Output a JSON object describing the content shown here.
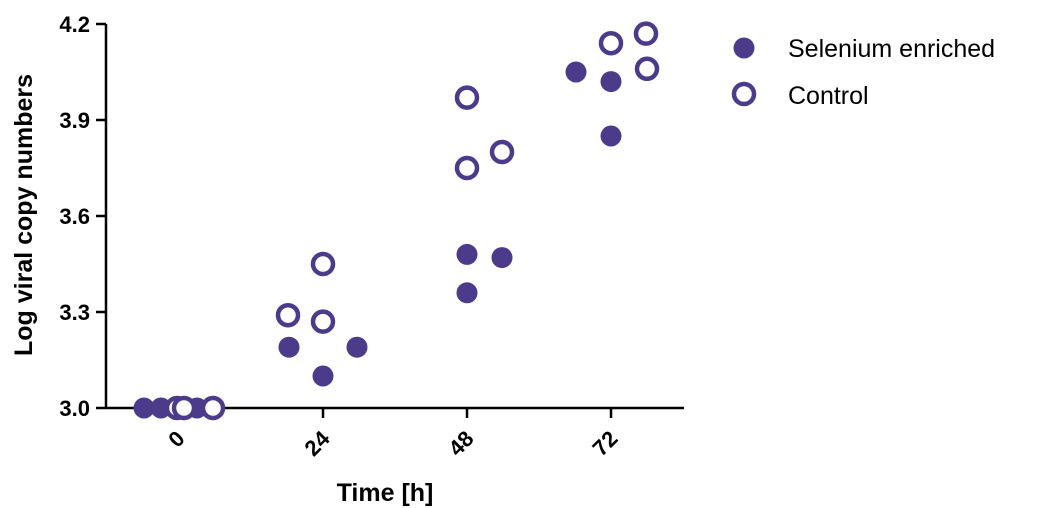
{
  "chart_data": {
    "type": "scatter",
    "xlabel": "Time [h]",
    "ylabel": "Log viral copy numbers",
    "categories": [
      "0",
      "24",
      "48",
      "72"
    ],
    "ylim": [
      3.0,
      4.2
    ],
    "yticks": [
      "3.0",
      "3.3",
      "3.6",
      "3.9",
      "4.2"
    ],
    "grid": false,
    "legend_position": "top-right",
    "series": [
      {
        "name": "Selenium enriched",
        "marker": "filled-circle",
        "color": "#4b3b8a",
        "points": [
          {
            "x": "0",
            "y": 3.0
          },
          {
            "x": "0",
            "y": 3.0
          },
          {
            "x": "0",
            "y": 3.0
          },
          {
            "x": "0",
            "y": 3.0
          },
          {
            "x": "24",
            "y": 3.19
          },
          {
            "x": "24",
            "y": 3.1
          },
          {
            "x": "24",
            "y": 3.19
          },
          {
            "x": "48",
            "y": 3.48
          },
          {
            "x": "48",
            "y": 3.36
          },
          {
            "x": "48",
            "y": 3.47
          },
          {
            "x": "72",
            "y": 4.05
          },
          {
            "x": "72",
            "y": 4.02
          },
          {
            "x": "72",
            "y": 3.85
          }
        ]
      },
      {
        "name": "Control",
        "marker": "open-circle",
        "color": "#4b3b8a",
        "points": [
          {
            "x": "0",
            "y": 3.0
          },
          {
            "x": "0",
            "y": 3.0
          },
          {
            "x": "0",
            "y": 3.0
          },
          {
            "x": "24",
            "y": 3.29
          },
          {
            "x": "24",
            "y": 3.27
          },
          {
            "x": "24",
            "y": 3.45
          },
          {
            "x": "48",
            "y": 3.97
          },
          {
            "x": "48",
            "y": 3.75
          },
          {
            "x": "48",
            "y": 3.8
          },
          {
            "x": "72",
            "y": 4.14
          },
          {
            "x": "72",
            "y": 4.06
          },
          {
            "x": "72",
            "y": 4.17
          }
        ]
      }
    ]
  }
}
